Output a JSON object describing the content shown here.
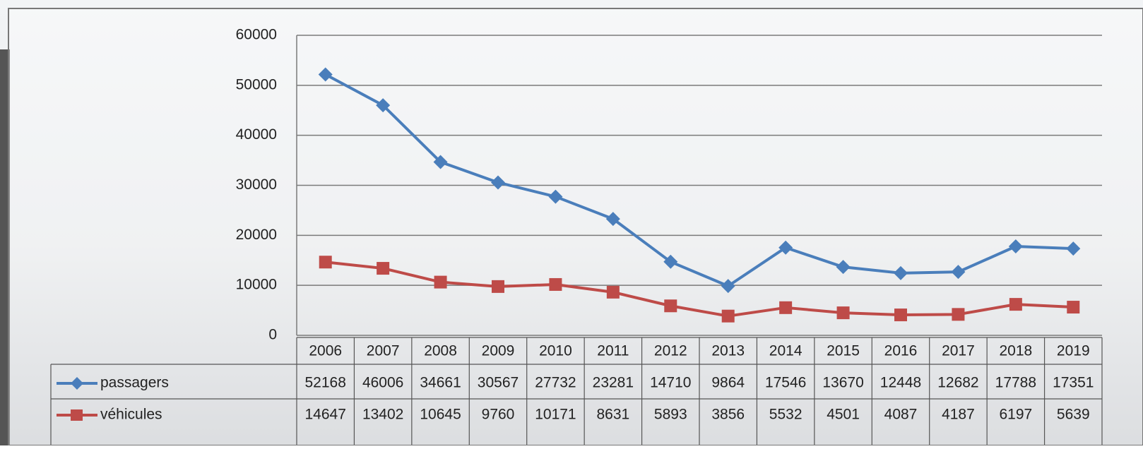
{
  "chart_data": {
    "type": "line",
    "categories": [
      "2006",
      "2007",
      "2008",
      "2009",
      "2010",
      "2011",
      "2012",
      "2013",
      "2014",
      "2015",
      "2016",
      "2017",
      "2018",
      "2019"
    ],
    "series": [
      {
        "name": "passagers",
        "color": "#4a7ebb",
        "marker": "diamond",
        "values": [
          52168,
          46006,
          34661,
          30567,
          27732,
          23281,
          14710,
          9864,
          17546,
          13670,
          12448,
          12682,
          17788,
          17351
        ]
      },
      {
        "name": "véhicules",
        "color": "#be4b48",
        "marker": "square",
        "values": [
          14647,
          13402,
          10645,
          9760,
          10171,
          8631,
          5893,
          3856,
          5532,
          4501,
          4087,
          4187,
          6197,
          5639
        ]
      }
    ],
    "ylim": [
      0,
      60000
    ],
    "yticks": [
      0,
      10000,
      20000,
      30000,
      40000,
      50000,
      60000
    ],
    "grid": true,
    "data_table": true
  }
}
